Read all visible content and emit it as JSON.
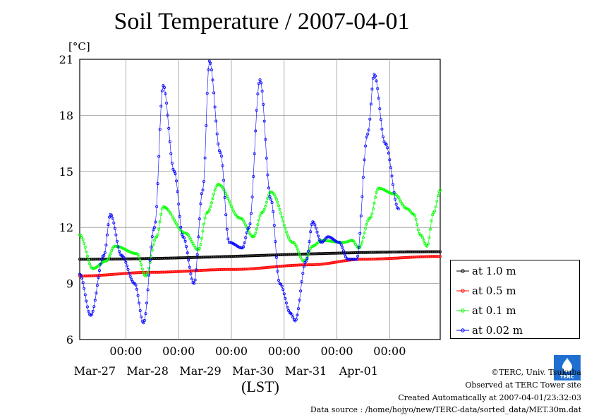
{
  "chart_data": {
    "type": "line",
    "title": "Soil Temperature / 2007-04-01",
    "ylabel": "[°C]",
    "xlabel": "(LST)",
    "ylim": [
      6,
      21
    ],
    "yticks": [
      6,
      9,
      12,
      15,
      18,
      21
    ],
    "xlim": [
      "2007-03-26 03:00",
      "2007-04-01 23:00"
    ],
    "xtick_time_label": "00:00",
    "xticks": [
      "2007-03-27 00:00",
      "2007-03-28 00:00",
      "2007-03-29 00:00",
      "2007-03-30 00:00",
      "2007-03-31 00:00",
      "2007-04-01 00:00"
    ],
    "xtick_date_labels": [
      "Mar-27",
      "Mar-28",
      "Mar-29",
      "Mar-30",
      "Mar-31",
      "Apr-01"
    ],
    "grid": true,
    "legend_position": "right",
    "series": [
      {
        "name": "at 1.0 m",
        "color": "#000000",
        "points": [
          [
            "2007-03-26 03:00",
            10.3
          ],
          [
            "2007-04-01 23:00",
            10.7
          ]
        ]
      },
      {
        "name": "at 0.5 m",
        "color": "#ff0000",
        "points": [
          [
            "2007-03-26 03:00",
            9.4
          ],
          [
            "2007-03-27 12:00",
            9.6
          ],
          [
            "2007-03-29 00:00",
            9.75
          ],
          [
            "2007-03-30 12:00",
            10.0
          ],
          [
            "2007-03-31 12:00",
            10.3
          ],
          [
            "2007-04-01 23:00",
            10.45
          ]
        ]
      },
      {
        "name": "at 0.1 m",
        "color": "#00ff00",
        "points": [
          [
            "2007-03-26 03:00",
            11.6
          ],
          [
            "2007-03-26 09:00",
            9.8
          ],
          [
            "2007-03-26 15:00",
            10.2
          ],
          [
            "2007-03-26 19:00",
            11.0
          ],
          [
            "2007-03-27 05:00",
            10.6
          ],
          [
            "2007-03-27 09:00",
            9.4
          ],
          [
            "2007-03-27 14:00",
            11.5
          ],
          [
            "2007-03-27 17:00",
            13.1
          ],
          [
            "2007-03-28 03:00",
            11.7
          ],
          [
            "2007-03-28 09:00",
            10.8
          ],
          [
            "2007-03-28 13:00",
            12.8
          ],
          [
            "2007-03-28 18:00",
            14.3
          ],
          [
            "2007-03-29 04:00",
            12.5
          ],
          [
            "2007-03-29 10:00",
            11.5
          ],
          [
            "2007-03-29 14:00",
            12.8
          ],
          [
            "2007-03-29 18:00",
            13.9
          ],
          [
            "2007-03-30 04:00",
            11.2
          ],
          [
            "2007-03-30 09:00",
            10.2
          ],
          [
            "2007-03-30 13:00",
            11.0
          ],
          [
            "2007-03-30 17:00",
            11.3
          ],
          [
            "2007-03-31 03:00",
            11.2
          ],
          [
            "2007-03-31 07:00",
            11.3
          ],
          [
            "2007-03-31 10:00",
            10.9
          ],
          [
            "2007-03-31 15:00",
            12.5
          ],
          [
            "2007-03-31 19:00",
            14.1
          ],
          [
            "2007-04-01 02:00",
            13.8
          ],
          [
            "2007-04-01 08:00",
            13.0
          ],
          [
            "2007-04-01 11:00",
            12.7
          ],
          [
            "2007-04-01 14:00",
            11.6
          ],
          [
            "2007-04-01 17:00",
            11.0
          ],
          [
            "2007-04-01 20:00",
            12.8
          ],
          [
            "2007-04-01 23:00",
            14.0
          ]
        ]
      },
      {
        "name": "at 0.02 m",
        "color": "#0000ff",
        "points": [
          [
            "2007-03-26 03:00",
            9.5
          ],
          [
            "2007-03-26 08:00",
            7.3
          ],
          [
            "2007-03-26 14:00",
            10.5
          ],
          [
            "2007-03-26 17:00",
            12.7
          ],
          [
            "2007-03-26 22:00",
            10.5
          ],
          [
            "2007-03-27 04:00",
            9.0
          ],
          [
            "2007-03-27 08:00",
            6.9
          ],
          [
            "2007-03-27 13:00",
            12.0
          ],
          [
            "2007-03-27 17:00",
            19.6
          ],
          [
            "2007-03-27 22:00",
            15.0
          ],
          [
            "2007-03-28 02:00",
            11.5
          ],
          [
            "2007-03-28 07:00",
            9.0
          ],
          [
            "2007-03-28 11:00",
            14.0
          ],
          [
            "2007-03-28 14:00",
            20.9
          ],
          [
            "2007-03-28 19:00",
            16.0
          ],
          [
            "2007-03-28 23:00",
            11.2
          ],
          [
            "2007-03-29 05:00",
            10.9
          ],
          [
            "2007-03-29 08:00",
            12.0
          ],
          [
            "2007-03-29 13:00",
            19.9
          ],
          [
            "2007-03-29 18:00",
            13.5
          ],
          [
            "2007-03-29 22:00",
            9.0
          ],
          [
            "2007-03-30 03:00",
            7.4
          ],
          [
            "2007-03-30 05:00",
            7.0
          ],
          [
            "2007-03-30 10:00",
            10.2
          ],
          [
            "2007-03-30 13:00",
            12.3
          ],
          [
            "2007-03-30 17:00",
            11.2
          ],
          [
            "2007-03-30 20:00",
            11.5
          ],
          [
            "2007-03-31 01:00",
            11.2
          ],
          [
            "2007-03-31 05:00",
            10.3
          ],
          [
            "2007-03-31 09:00",
            10.3
          ],
          [
            "2007-03-31 14:00",
            17.0
          ],
          [
            "2007-03-31 17:00",
            20.2
          ],
          [
            "2007-03-31 22:00",
            16.5
          ],
          [
            "2007-04-01 04:00",
            13.0
          ]
        ]
      }
    ]
  },
  "footer": {
    "copyright": "©TERC, Univ. Tsukuba",
    "observed": "Observed at TERC Tower site",
    "created": "Created Automatically at 2007-04-01/23:32:03",
    "source": "Data source : /home/hojyo/new/TERC-data/sorted_data/MET.30m.dat"
  },
  "logo_text": "TERC"
}
